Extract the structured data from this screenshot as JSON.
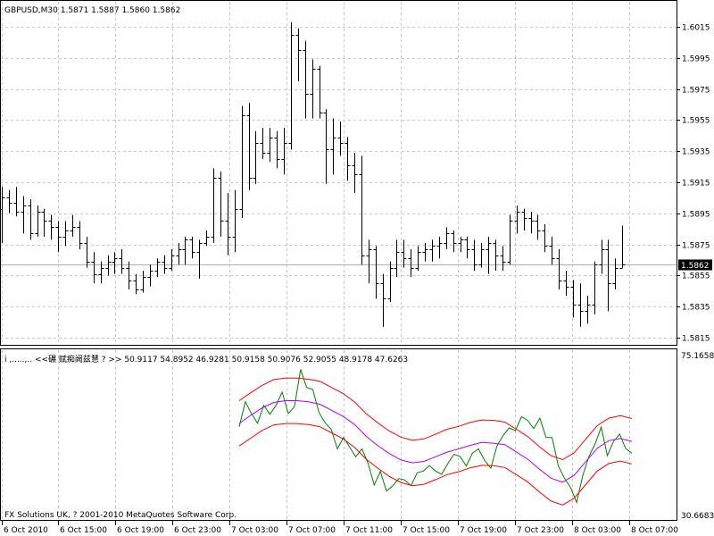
{
  "header": {
    "symbol_info": "GBPUSD,M30  1.5871 1.5887 1.5860 1.5862"
  },
  "indicator": {
    "label": "i  ,.....,..    <<碾    赋痴阙兹慧 ? >> 50.9117 54.8952 46.9281 50.9158 50.9076 52.9055 48.9178 47.6263",
    "max_label": "75.1658",
    "min_label": "30.6683",
    "copyright": "FX Solutions UK, ? 2001-2010 MetaQuotes Software Corp."
  },
  "colors": {
    "background": "#ffffff",
    "grid": "#c8c8c8",
    "bars": "#000000",
    "band": "#ff0000",
    "mid": "#b000ff",
    "osc": "#008000",
    "price_box": "#000000"
  },
  "chart_data": [
    {
      "type": "ohlc",
      "title": "GBPUSD,M30",
      "ylim": [
        1.5805,
        1.6025
      ],
      "yticks": [
        "1.6015",
        "1.5995",
        "1.5975",
        "1.5955",
        "1.5935",
        "1.5915",
        "1.5895",
        "1.5875",
        "1.5855",
        "1.5835",
        "1.5815"
      ],
      "current_price": "1.5862",
      "xlabels": [
        "6 Oct 2010",
        "6 Oct 15:00",
        "6 Oct 19:00",
        "6 Oct 23:00",
        "7 Oct 03:00",
        "7 Oct 07:00",
        "7 Oct 11:00",
        "7 Oct 15:00",
        "7 Oct 19:00",
        "7 Oct 23:00",
        "8 Oct 03:00",
        "8 Oct 07:00"
      ],
      "bars": [
        [
          1.5898,
          1.5912,
          1.5876,
          1.5905
        ],
        [
          1.5905,
          1.591,
          1.5895,
          1.5902
        ],
        [
          1.5902,
          1.5912,
          1.5893,
          1.5896
        ],
        [
          1.5896,
          1.5906,
          1.5882,
          1.59
        ],
        [
          1.59,
          1.5904,
          1.5878,
          1.5882
        ],
        [
          1.5882,
          1.59,
          1.588,
          1.5896
        ],
        [
          1.5896,
          1.5898,
          1.588,
          1.589
        ],
        [
          1.589,
          1.5894,
          1.5878,
          1.5886
        ],
        [
          1.5886,
          1.589,
          1.587,
          1.588
        ],
        [
          1.588,
          1.589,
          1.5874,
          1.5884
        ],
        [
          1.5884,
          1.5894,
          1.588,
          1.5886
        ],
        [
          1.5886,
          1.589,
          1.5872,
          1.5876
        ],
        [
          1.5876,
          1.588,
          1.586,
          1.5864
        ],
        [
          1.5864,
          1.587,
          1.585,
          1.5856
        ],
        [
          1.5856,
          1.5864,
          1.585,
          1.586
        ],
        [
          1.586,
          1.5868,
          1.5855,
          1.5864
        ],
        [
          1.5864,
          1.587,
          1.5856,
          1.5866
        ],
        [
          1.5866,
          1.5872,
          1.5856,
          1.586
        ],
        [
          1.586,
          1.5864,
          1.5846,
          1.5852
        ],
        [
          1.5852,
          1.5856,
          1.5843,
          1.5846
        ],
        [
          1.5846,
          1.5858,
          1.5844,
          1.5854
        ],
        [
          1.5854,
          1.5862,
          1.5848,
          1.5858
        ],
        [
          1.5858,
          1.5866,
          1.5854,
          1.5864
        ],
        [
          1.5864,
          1.5868,
          1.5856,
          1.586
        ],
        [
          1.586,
          1.5872,
          1.5858,
          1.5868
        ],
        [
          1.5868,
          1.5876,
          1.5862,
          1.5872
        ],
        [
          1.5872,
          1.588,
          1.5862,
          1.5878
        ],
        [
          1.5878,
          1.588,
          1.5866,
          1.587
        ],
        [
          1.587,
          1.5878,
          1.5853,
          1.5876
        ],
        [
          1.5876,
          1.5884,
          1.5874,
          1.588
        ],
        [
          1.588,
          1.5924,
          1.5876,
          1.5918
        ],
        [
          1.5918,
          1.5922,
          1.588,
          1.589
        ],
        [
          1.589,
          1.5908,
          1.5868,
          1.588
        ],
        [
          1.588,
          1.591,
          1.587,
          1.5898
        ],
        [
          1.5898,
          1.5964,
          1.5892,
          1.5958
        ],
        [
          1.5958,
          1.5966,
          1.591,
          1.5918
        ],
        [
          1.5918,
          1.5948,
          1.5914,
          1.594
        ],
        [
          1.594,
          1.595,
          1.593,
          1.5934
        ],
        [
          1.5934,
          1.595,
          1.5928,
          1.5944
        ],
        [
          1.5944,
          1.5948,
          1.5924,
          1.593
        ],
        [
          1.593,
          1.595,
          1.592,
          1.594
        ],
        [
          1.594,
          1.6018,
          1.5936,
          1.601
        ],
        [
          1.601,
          1.6014,
          1.598,
          1.6
        ],
        [
          1.6,
          1.6006,
          1.5956,
          1.5972
        ],
        [
          1.5972,
          1.5994,
          1.5956,
          1.5988
        ],
        [
          1.5988,
          1.599,
          1.5956,
          1.596
        ],
        [
          1.596,
          1.5962,
          1.5914,
          1.5936
        ],
        [
          1.5936,
          1.5956,
          1.592,
          1.5944
        ],
        [
          1.5944,
          1.5954,
          1.5932,
          1.594
        ],
        [
          1.594,
          1.5944,
          1.5916,
          1.5926
        ],
        [
          1.5926,
          1.5934,
          1.5908,
          1.592
        ],
        [
          1.592,
          1.5932,
          1.5862,
          1.5868
        ],
        [
          1.5868,
          1.5878,
          1.585,
          1.5872
        ],
        [
          1.5872,
          1.5874,
          1.584,
          1.585
        ],
        [
          1.585,
          1.5856,
          1.5822,
          1.584
        ],
        [
          1.584,
          1.5864,
          1.5838,
          1.586
        ],
        [
          1.586,
          1.5878,
          1.5854,
          1.587
        ],
        [
          1.587,
          1.5878,
          1.586,
          1.5866
        ],
        [
          1.5866,
          1.5872,
          1.5854,
          1.586
        ],
        [
          1.586,
          1.5874,
          1.5858,
          1.587
        ],
        [
          1.587,
          1.5876,
          1.5864,
          1.5872
        ],
        [
          1.5872,
          1.5878,
          1.5864,
          1.5874
        ],
        [
          1.5874,
          1.588,
          1.5866,
          1.5876
        ],
        [
          1.5876,
          1.5886,
          1.5872,
          1.5882
        ],
        [
          1.5882,
          1.5884,
          1.587,
          1.5876
        ],
        [
          1.5876,
          1.588,
          1.587,
          1.5878
        ],
        [
          1.5878,
          1.588,
          1.5866,
          1.5872
        ],
        [
          1.5872,
          1.5878,
          1.5858,
          1.5862
        ],
        [
          1.5862,
          1.5876,
          1.586,
          1.5872
        ],
        [
          1.5872,
          1.588,
          1.5856,
          1.5876
        ],
        [
          1.5876,
          1.5878,
          1.5858,
          1.5868
        ],
        [
          1.5868,
          1.5874,
          1.5858,
          1.5864
        ],
        [
          1.5864,
          1.5894,
          1.5862,
          1.589
        ],
        [
          1.589,
          1.59,
          1.5882,
          1.5896
        ],
        [
          1.5896,
          1.5898,
          1.5884,
          1.5892
        ],
        [
          1.5892,
          1.5896,
          1.5882,
          1.589
        ],
        [
          1.589,
          1.5894,
          1.5878,
          1.5884
        ],
        [
          1.5884,
          1.5888,
          1.587,
          1.5874
        ],
        [
          1.5874,
          1.588,
          1.5862,
          1.5866
        ],
        [
          1.5866,
          1.5872,
          1.5846,
          1.5852
        ],
        [
          1.5852,
          1.5858,
          1.5842,
          1.5848
        ],
        [
          1.5848,
          1.5852,
          1.5828,
          1.5836
        ],
        [
          1.5836,
          1.585,
          1.5822,
          1.5832
        ],
        [
          1.5832,
          1.5842,
          1.5824,
          1.5836
        ],
        [
          1.5836,
          1.5864,
          1.583,
          1.5862
        ],
        [
          1.5862,
          1.5878,
          1.5856,
          1.5872
        ],
        [
          1.5872,
          1.5878,
          1.5832,
          1.585
        ],
        [
          1.585,
          1.5866,
          1.5846,
          1.586
        ],
        [
          1.586,
          1.5887,
          1.586,
          1.5862
        ]
      ]
    },
    {
      "type": "line",
      "title": "",
      "ylim": [
        30.6683,
        75.1658
      ],
      "ymax_label": "75.1658",
      "ymin_label": "30.6683",
      "series": [
        {
          "key": "osc",
          "values": [
            55.0,
            62.0,
            58.6,
            56.0,
            61.0,
            58.5,
            61.0,
            64.7,
            58.7,
            60.6,
            71.0,
            66.0,
            65.4,
            59.0,
            56.1,
            54.3,
            48.8,
            52.0,
            49.3,
            46.6,
            48.8,
            44.8,
            38.7,
            42.5,
            37.0,
            38.4,
            40.5,
            40.1,
            38.5,
            42.1,
            42.6,
            44.1,
            42.6,
            41.7,
            44.7,
            47.3,
            46.7,
            44.0,
            47.6,
            48.8,
            45.6,
            43.4,
            49.6,
            52.5,
            54.7,
            53.9,
            57.8,
            56.8,
            54.5,
            57.4,
            52.0,
            52.0,
            44.1,
            40.6,
            38.0,
            33.8,
            41.4,
            46.7,
            50.2,
            54.9,
            46.9,
            50.9,
            52.9,
            48.9,
            47.6
          ]
        },
        {
          "key": "upper",
          "values": [
            62.3,
            64.5,
            66.6,
            68.2,
            68.6,
            68.6,
            68.3,
            67.7,
            66.0,
            64.3,
            61.9,
            58.6,
            56.1,
            53.8,
            52.1,
            51.2,
            51.6,
            52.9,
            54.3,
            55.1,
            56.2,
            56.9,
            56.8,
            56.3,
            54.3,
            52.2,
            49.4,
            46.9,
            45.8,
            47.7,
            51.5,
            55.3,
            57.4,
            58.1,
            57.3
          ]
        },
        {
          "key": "mid",
          "values": [
            55.9,
            58.2,
            60.3,
            61.8,
            62.3,
            62.3,
            62.0,
            61.3,
            59.6,
            57.9,
            55.6,
            52.3,
            49.7,
            47.5,
            45.7,
            44.9,
            45.3,
            46.6,
            47.9,
            48.8,
            49.8,
            50.6,
            50.4,
            50.0,
            47.9,
            45.9,
            43.1,
            40.6,
            39.5,
            41.4,
            45.2,
            49.0,
            51.1,
            51.7,
            50.9
          ]
        },
        {
          "key": "lower",
          "values": [
            49.6,
            51.8,
            54.0,
            55.5,
            55.9,
            55.9,
            55.6,
            55.0,
            53.3,
            51.6,
            49.2,
            45.9,
            43.4,
            41.1,
            39.4,
            38.5,
            38.9,
            40.2,
            41.6,
            42.4,
            43.5,
            44.2,
            44.1,
            43.6,
            41.6,
            39.5,
            36.7,
            34.2,
            33.1,
            35.0,
            38.8,
            42.6,
            44.7,
            45.4,
            44.6
          ]
        }
      ]
    }
  ]
}
